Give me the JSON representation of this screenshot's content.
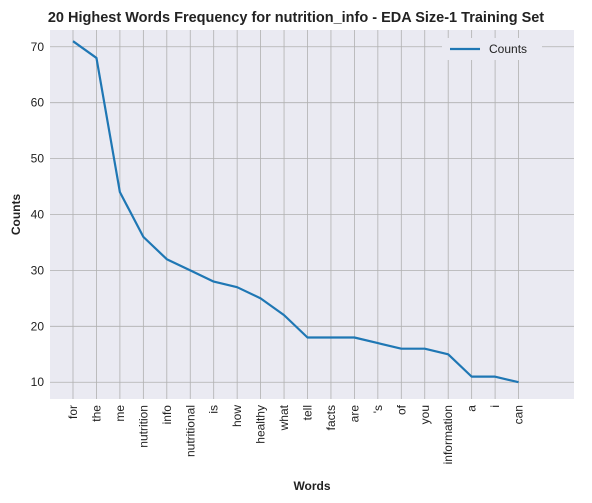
{
  "chart_data": {
    "type": "line",
    "title": "20 Highest Words Frequency for nutrition_info - EDA Size-1 Training Set",
    "xlabel": "Words",
    "ylabel": "Counts",
    "categories": [
      "for",
      "the",
      "me",
      "nutrition",
      "info",
      "nutritional",
      "is",
      "how",
      "healthy",
      "what",
      "tell",
      "facts",
      "are",
      "'s",
      "of",
      "you",
      "information",
      "a",
      "i",
      "can"
    ],
    "series": [
      {
        "name": "Counts",
        "values": [
          71,
          68,
          44,
          36,
          32,
          30,
          28,
          27,
          25,
          22,
          18,
          18,
          18,
          17,
          16,
          16,
          15,
          11,
          11,
          10
        ]
      }
    ],
    "yticks": [
      10,
      20,
      30,
      40,
      50,
      60,
      70
    ],
    "ylim": [
      7,
      73
    ],
    "grid": true,
    "legend": "top-right",
    "colors": {
      "line": "#1f77b4",
      "plot_bg": "#eaeaf2",
      "grid": "#b0b0b0"
    }
  }
}
